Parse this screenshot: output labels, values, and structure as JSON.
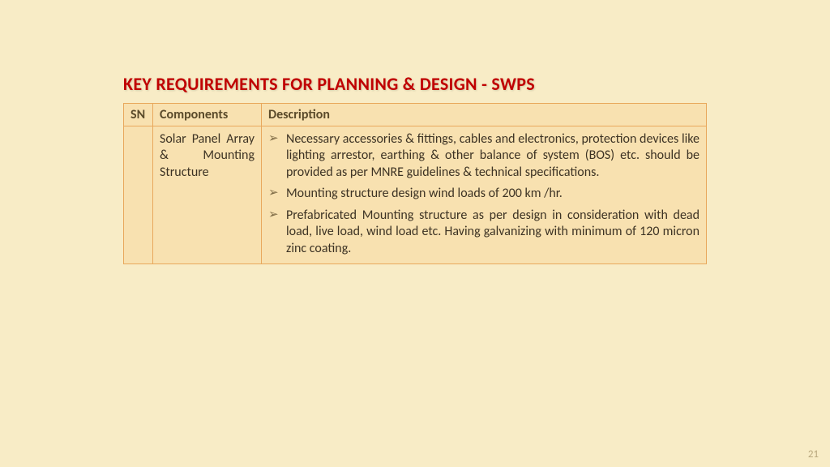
{
  "slide": {
    "title": "KEY REQUIREMENTS FOR PLANNING & DESIGN - SWPS",
    "page_number": "21",
    "background_color": "#f8ecc6",
    "title_color": "#c00000",
    "border_color": "#e8a85c",
    "cell_bg": "#f8e1b0"
  },
  "table": {
    "columns": [
      "SN",
      "Components",
      "Description"
    ],
    "rows": [
      {
        "sn": "",
        "component": "Solar Panel Array & Mounting Structure",
        "bullets": [
          "Necessary accessories & fittings, cables and electronics,  protection devices like lighting arrestor, earthing & other balance of system (BOS) etc. should be provided as per MNRE guidelines & technical specifications.",
          "Mounting structure design wind loads of 200 km /hr.",
          "Prefabricated Mounting structure as per design in consideration with dead load, live load, wind load etc. Having galvanizing with minimum of 120 micron zinc coating."
        ]
      }
    ]
  }
}
